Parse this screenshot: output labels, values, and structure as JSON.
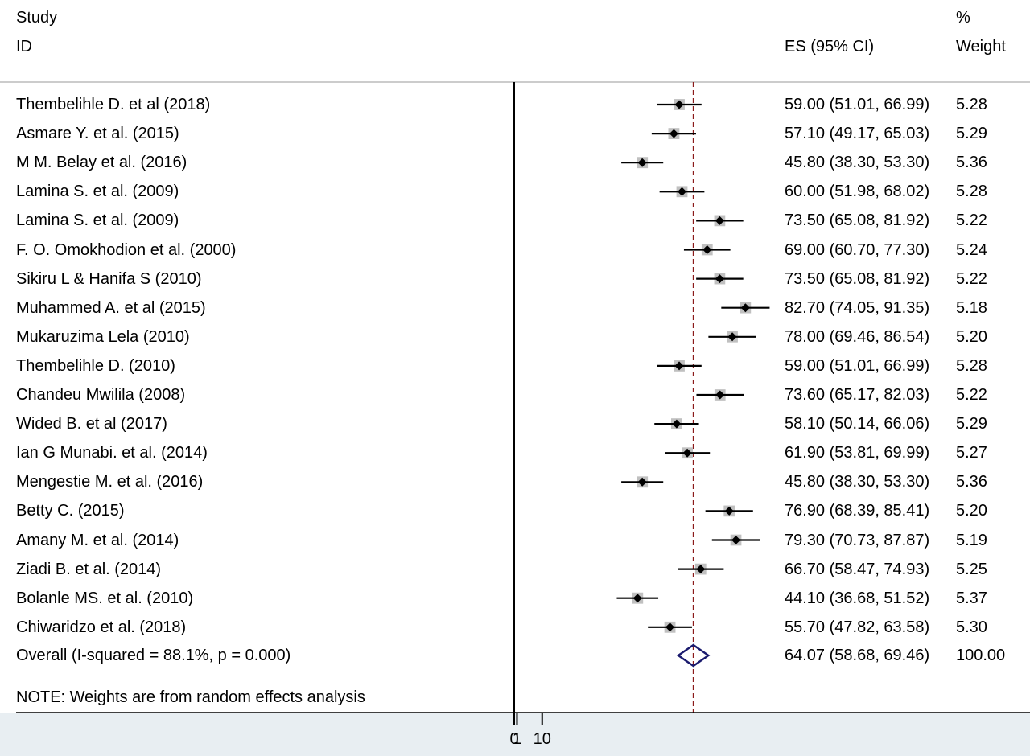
{
  "header": {
    "study_label": "Study",
    "id_label": "ID",
    "es_label": "ES (95% CI)",
    "pct_label": "%",
    "weight_label": "Weight"
  },
  "chart_data": {
    "type": "forest",
    "x_ticks": [
      {
        "value": 0,
        "label": "0"
      },
      {
        "value": 1,
        "label": "1"
      },
      {
        "value": 10,
        "label": "10"
      }
    ],
    "null_line": 0,
    "overall_line": 64.07,
    "studies": [
      {
        "name": "Thembelihle D. et al (2018)",
        "es": 59.0,
        "lo": 51.01,
        "hi": 66.99,
        "es_text": "59.00 (51.01, 66.99)",
        "weight": "5.28"
      },
      {
        "name": "Asmare Y. et al. (2015)",
        "es": 57.1,
        "lo": 49.17,
        "hi": 65.03,
        "es_text": "57.10 (49.17, 65.03)",
        "weight": "5.29"
      },
      {
        "name": "M M. Belay et al. (2016)",
        "es": 45.8,
        "lo": 38.3,
        "hi": 53.3,
        "es_text": "45.80 (38.30, 53.30)",
        "weight": "5.36"
      },
      {
        "name": "Lamina S. et al. (2009)",
        "es": 60.0,
        "lo": 51.98,
        "hi": 68.02,
        "es_text": "60.00 (51.98, 68.02)",
        "weight": "5.28"
      },
      {
        "name": "Lamina S. et al. (2009)",
        "es": 73.5,
        "lo": 65.08,
        "hi": 81.92,
        "es_text": "73.50 (65.08, 81.92)",
        "weight": "5.22"
      },
      {
        "name": "F. O. Omokhodion et al. (2000)",
        "es": 69.0,
        "lo": 60.7,
        "hi": 77.3,
        "es_text": "69.00 (60.70, 77.30)",
        "weight": "5.24"
      },
      {
        "name": "Sikiru L & Hanifa S (2010)",
        "es": 73.5,
        "lo": 65.08,
        "hi": 81.92,
        "es_text": "73.50 (65.08, 81.92)",
        "weight": "5.22"
      },
      {
        "name": "Muhammed A. et al (2015)",
        "es": 82.7,
        "lo": 74.05,
        "hi": 91.35,
        "es_text": "82.70 (74.05, 91.35)",
        "weight": "5.18"
      },
      {
        "name": "Mukaruzima Lela (2010)",
        "es": 78.0,
        "lo": 69.46,
        "hi": 86.54,
        "es_text": "78.00 (69.46, 86.54)",
        "weight": "5.20"
      },
      {
        "name": "Thembelihle D. (2010)",
        "es": 59.0,
        "lo": 51.01,
        "hi": 66.99,
        "es_text": "59.00 (51.01, 66.99)",
        "weight": "5.28"
      },
      {
        "name": "Chandeu Mwilila (2008)",
        "es": 73.6,
        "lo": 65.17,
        "hi": 82.03,
        "es_text": "73.60 (65.17, 82.03)",
        "weight": "5.22"
      },
      {
        "name": "Wided B. et al (2017)",
        "es": 58.1,
        "lo": 50.14,
        "hi": 66.06,
        "es_text": "58.10 (50.14, 66.06)",
        "weight": "5.29"
      },
      {
        "name": "Ian G Munabi. et al. (2014)",
        "es": 61.9,
        "lo": 53.81,
        "hi": 69.99,
        "es_text": "61.90 (53.81, 69.99)",
        "weight": "5.27"
      },
      {
        "name": "Mengestie M. et al. (2016)",
        "es": 45.8,
        "lo": 38.3,
        "hi": 53.3,
        "es_text": "45.80 (38.30, 53.30)",
        "weight": "5.36"
      },
      {
        "name": "Betty C. (2015)",
        "es": 76.9,
        "lo": 68.39,
        "hi": 85.41,
        "es_text": "76.90 (68.39, 85.41)",
        "weight": "5.20"
      },
      {
        "name": "Amany M. et al. (2014)",
        "es": 79.3,
        "lo": 70.73,
        "hi": 87.87,
        "es_text": "79.30 (70.73, 87.87)",
        "weight": "5.19"
      },
      {
        "name": "Ziadi B. et al. (2014)",
        "es": 66.7,
        "lo": 58.47,
        "hi": 74.93,
        "es_text": "66.70 (58.47, 74.93)",
        "weight": "5.25"
      },
      {
        "name": "Bolanle MS. et al. (2010)",
        "es": 44.1,
        "lo": 36.68,
        "hi": 51.52,
        "es_text": "44.10 (36.68, 51.52)",
        "weight": "5.37"
      },
      {
        "name": "Chiwaridzo et al. (2018)",
        "es": 55.7,
        "lo": 47.82,
        "hi": 63.58,
        "es_text": "55.70 (47.82, 63.58)",
        "weight": "5.30"
      }
    ],
    "overall": {
      "label": "Overall  (I-squared = 88.1%, p = 0.000)",
      "es": 64.07,
      "lo": 58.68,
      "hi": 69.46,
      "es_text": "64.07 (58.68, 69.46)",
      "weight": "100.00"
    },
    "note": "NOTE: Weights are from random effects analysis",
    "colors": {
      "ci_line": "#000000",
      "point": "#000000",
      "weight_box": "#c0c0c0",
      "overall_diamond": "#1a1a6e",
      "overall_line": "#8b1a1a",
      "separator": "#cccccc",
      "footer_band": "#e8eef2"
    }
  }
}
